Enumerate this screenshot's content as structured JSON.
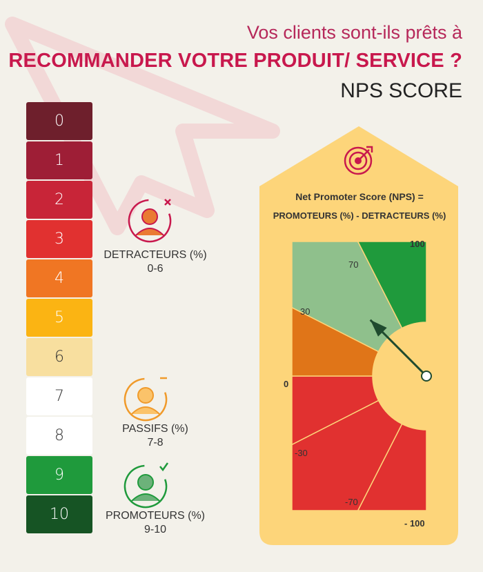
{
  "header": {
    "subtitle": "Vos clients sont-ils prêts à",
    "title": "RECOMMANDER VOTRE PRODUIT/ SERVICE ?",
    "label": "NPS SCORE"
  },
  "scale": [
    {
      "value": "0",
      "color": "#6e1f2c"
    },
    {
      "value": "1",
      "color": "#9e1e36"
    },
    {
      "value": "2",
      "color": "#c82538"
    },
    {
      "value": "3",
      "color": "#e13130"
    },
    {
      "value": "4",
      "color": "#f07623"
    },
    {
      "value": "5",
      "color": "#fbb413"
    },
    {
      "value": "6",
      "color": "#f8df9f"
    },
    {
      "value": "7",
      "color": "#ffffff"
    },
    {
      "value": "8",
      "color": "#ffffff"
    },
    {
      "value": "9",
      "color": "#1f9a3c"
    },
    {
      "value": "10",
      "color": "#165424"
    }
  ],
  "groups": {
    "detracteurs": {
      "label": "DETRACTEURS (%)",
      "range": "0-6",
      "icon": "person-cross-icon",
      "color": "#c8184d"
    },
    "passifs": {
      "label": "PASSIFS (%)",
      "range": "7-8",
      "icon": "person-minus-icon",
      "color": "#f09a2a"
    },
    "promoteurs": {
      "label": "PROMOTEURS (%)",
      "range": "9-10",
      "icon": "person-check-icon",
      "color": "#1f9a3c"
    }
  },
  "panel": {
    "icon": "target-icon",
    "formula_line1": "Net Promoter Score (NPS) =",
    "formula_line2": "PROMOTEURS (%) - DETRACTEURS (%)",
    "background": "#fdd57a"
  },
  "gauge": {
    "ticks": [
      "100",
      "70",
      "30",
      "0",
      "-30",
      "-70",
      "- 100"
    ],
    "pointer_value": 50,
    "segments": [
      {
        "from": -100,
        "to": -70,
        "color": "#e13130"
      },
      {
        "from": -70,
        "to": -30,
        "color": "#e13130"
      },
      {
        "from": -30,
        "to": 0,
        "color": "#e13130"
      },
      {
        "from": 0,
        "to": 30,
        "color": "#e07518"
      },
      {
        "from": 30,
        "to": 70,
        "color": "#8fc08c"
      },
      {
        "from": 70,
        "to": 100,
        "color": "#1f9a3c"
      }
    ]
  }
}
